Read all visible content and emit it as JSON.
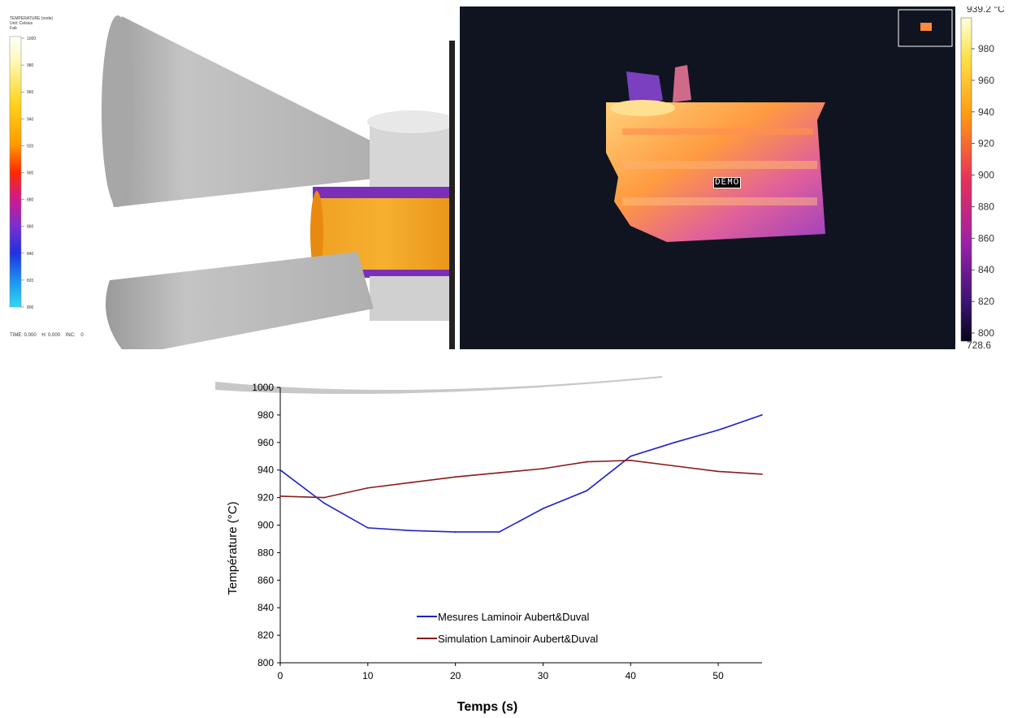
{
  "simulation": {
    "title_lines": [
      "TEMPERATURE (node)",
      "Unit: Celsius",
      "Fab"
    ],
    "scale_ticks": [
      "1000",
      "980",
      "960",
      "940",
      "920",
      "900",
      "880",
      "860",
      "840",
      "820",
      "800"
    ],
    "footer": "TIME: 0.000    H: 0.000    INC:    0",
    "colors": {
      "die": "#b8b8b8",
      "ring_hot": "#f6a623",
      "ring_edge": "#7a2fb8"
    }
  },
  "thermo": {
    "max_label": "939.2 °C",
    "min_label": "728.6",
    "demo_label": "DEMO",
    "scale_ticks": [
      "980",
      "960",
      "940",
      "920",
      "900",
      "880",
      "860",
      "840",
      "820",
      "800"
    ],
    "colors": {
      "background": "#0f1420"
    }
  },
  "chart_data": {
    "type": "line",
    "xlabel": "Temps (s)",
    "ylabel": "Température (°C)",
    "xlim": [
      0,
      55
    ],
    "ylim": [
      800,
      1000
    ],
    "xticks": [
      0,
      10,
      20,
      30,
      40,
      50
    ],
    "yticks": [
      800,
      820,
      840,
      860,
      880,
      900,
      920,
      940,
      960,
      980,
      1000
    ],
    "series": [
      {
        "name": "Mesures Laminoir Aubert&Duval",
        "color": "#1e22c8",
        "x": [
          0,
          5,
          10,
          15,
          20,
          25,
          30,
          35,
          40,
          45,
          50,
          55
        ],
        "y": [
          940,
          916,
          898,
          896,
          895,
          895,
          912,
          925,
          950,
          960,
          969,
          980
        ]
      },
      {
        "name": "Simulation Laminoir Aubert&Duval",
        "color": "#8b1a1a",
        "x": [
          0,
          5,
          10,
          15,
          20,
          25,
          30,
          35,
          40,
          45,
          50,
          55
        ],
        "y": [
          921,
          920,
          927,
          931,
          935,
          938,
          941,
          946,
          947,
          943,
          939,
          937
        ]
      }
    ],
    "legend_placement": "bottom-center"
  }
}
